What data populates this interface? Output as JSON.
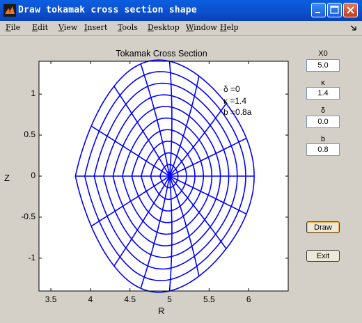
{
  "window": {
    "title": "Draw tokamak cross section shape",
    "controls": {
      "minimize": "minimize",
      "maximize": "maximize",
      "close": "close"
    }
  },
  "menu": [
    {
      "key": "F",
      "rest": "ile"
    },
    {
      "key": "E",
      "rest": "dit"
    },
    {
      "key": "V",
      "rest": "iew"
    },
    {
      "key": "I",
      "rest": "nsert"
    },
    {
      "key": "T",
      "rest": "ools"
    },
    {
      "key": "D",
      "rest": "esktop"
    },
    {
      "key": "W",
      "rest": "indow"
    },
    {
      "key": "H",
      "rest": "elp"
    }
  ],
  "plot": {
    "title": "Tokamak Cross Section",
    "xlabel": "R",
    "ylabel": "Z",
    "annotation": {
      "delta": "δ =0",
      "kappa": "κ =1.4",
      "b": "b =0.8a"
    },
    "line_color": "#0000ff"
  },
  "chart_data": {
    "type": "line",
    "title": "Tokamak Cross Section",
    "xlabel": "R",
    "ylabel": "Z",
    "xlim": [
      3.35,
      6.5
    ],
    "ylim": [
      -1.4,
      1.4
    ],
    "xticks": [
      "3.5",
      "4",
      "4.5",
      "5",
      "5.5",
      "6"
    ],
    "yticks": [
      "-1",
      "-0.5",
      "0",
      "0.5",
      "1"
    ],
    "grid": false,
    "params": {
      "R0": 5.0,
      "kappa": 1.4,
      "delta": 0.0,
      "b": 0.8,
      "a": 1.0
    },
    "flux_surface_fractions": [
      0.1,
      0.2,
      0.3,
      0.4,
      0.5,
      0.6,
      0.7,
      0.8,
      0.9,
      1.0
    ],
    "radial_line_count": 16
  },
  "controls": {
    "x0": {
      "label": "X0",
      "value": "5.0"
    },
    "kappa": {
      "label": "κ",
      "value": "1.4"
    },
    "delta": {
      "label": "δ",
      "value": "0.0"
    },
    "b": {
      "label": "b",
      "value": "0.8"
    }
  },
  "buttons": {
    "draw": "Draw",
    "exit": "Exit"
  }
}
